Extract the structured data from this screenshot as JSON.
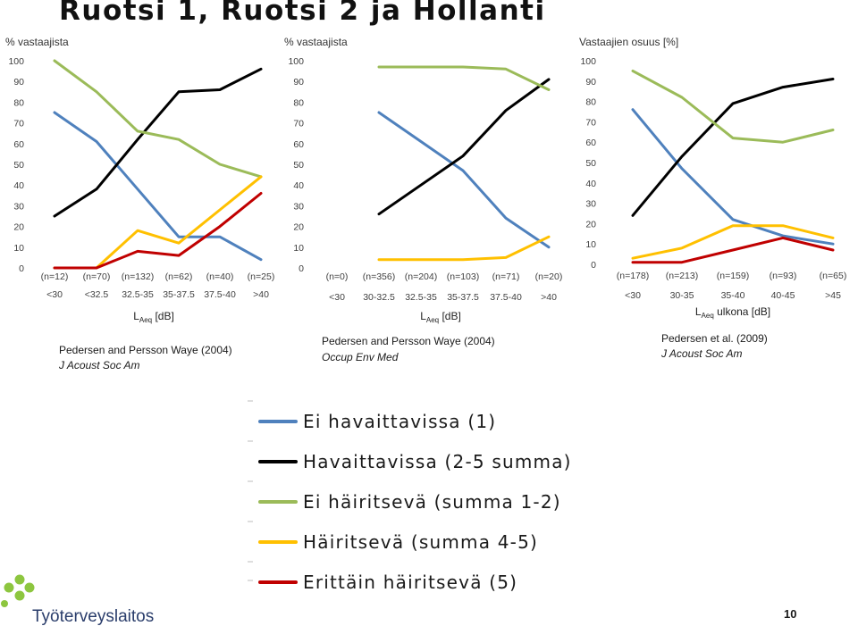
{
  "title": "Ruotsi 1, Ruotsi 2 ja Hollanti",
  "page_number": "10",
  "logo_text": "Työterveyslaitos",
  "legend": [
    {
      "label": "Ei havaittavissa (1)",
      "color": "#4f81bd"
    },
    {
      "label": "Havaittavissa (2-5 summa)",
      "color": "#000000"
    },
    {
      "label": "Ei häiritsevä (summa 1-2)",
      "color": "#9bbb59"
    },
    {
      "label": "Häiritsevä (summa 4-5)",
      "color": "#ffc000"
    },
    {
      "label": "Erittäin häiritsevä (5)",
      "color": "#c00000"
    }
  ],
  "chart_data": [
    {
      "type": "line",
      "ylabel": "% vastaajista",
      "ylim": [
        0,
        100
      ],
      "yticks": [
        "0",
        "10",
        "20",
        "30",
        "40",
        "50",
        "60",
        "70",
        "80",
        "90",
        "100"
      ],
      "x": [
        "<30",
        "<32.5",
        "32.5-35",
        "35-37.5",
        "37.5-40",
        ">40"
      ],
      "counts": [
        "(n=12)",
        "(n=70)",
        "(n=132)",
        "(n=62)",
        "(n=40)",
        "(n=25)"
      ],
      "xlabel_main": "L",
      "xlabel_sub": "Aeq",
      "xlabel_rest": " [dB]",
      "source_line1": "Pedersen and Persson Waye (2004)",
      "source_line2": "J Acoust Soc Am",
      "series": [
        {
          "name": "Ei havaittavissa (1)",
          "values": [
            75,
            61,
            38,
            15,
            15,
            4
          ]
        },
        {
          "name": "Havaittavissa (2-5 summa)",
          "values": [
            25,
            38,
            62,
            85,
            86,
            96
          ]
        },
        {
          "name": "Ei häiritsevä (summa 1-2)",
          "values": [
            100,
            85,
            66,
            62,
            50,
            44
          ]
        },
        {
          "name": "Häiritsevä (summa 4-5)",
          "values": [
            0,
            0,
            18,
            12,
            28,
            44
          ]
        },
        {
          "name": "Erittäin häiritsevä (5)",
          "values": [
            0,
            0,
            8,
            6,
            20,
            36
          ]
        }
      ]
    },
    {
      "type": "line",
      "ylabel": "% vastaajista",
      "ylim": [
        0,
        100
      ],
      "yticks": [
        "0",
        "10",
        "20",
        "30",
        "40",
        "50",
        "60",
        "70",
        "80",
        "90",
        "100"
      ],
      "x": [
        "<30",
        "30-32.5",
        "32.5-35",
        "35-37.5",
        "37.5-40",
        ">40"
      ],
      "counts": [
        "(n=0)",
        "(n=356)",
        "(n=204)",
        "(n=103)",
        "(n=71)",
        "(n=20)"
      ],
      "xlabel_main": "L",
      "xlabel_sub": "Aeq",
      "xlabel_rest": " [dB]",
      "source_line1": "Pedersen and Persson Waye (2004)",
      "source_line2": "Occup Env Med",
      "series": [
        {
          "name": "Ei havaittavissa (1)",
          "values": [
            null,
            75,
            61,
            47,
            24,
            10
          ]
        },
        {
          "name": "Havaittavissa (2-5 summa)",
          "values": [
            null,
            26,
            40,
            54,
            76,
            91
          ]
        },
        {
          "name": "Ei häiritsevä (summa 1-2)",
          "values": [
            null,
            97,
            97,
            97,
            96,
            86
          ]
        },
        {
          "name": "Häiritsevä (summa 4-5)",
          "values": [
            null,
            4,
            4,
            4,
            5,
            15
          ]
        },
        {
          "name": "Erittäin häiritsevä (5)",
          "values": [
            null,
            null,
            null,
            null,
            null,
            null
          ]
        }
      ]
    },
    {
      "type": "line",
      "ylabel": "Vastaajien osuus [%]",
      "ylim": [
        0,
        100
      ],
      "yticks": [
        "0",
        "10",
        "20",
        "30",
        "40",
        "50",
        "60",
        "70",
        "80",
        "90",
        "100"
      ],
      "x": [
        "<30",
        "30-35",
        "35-40",
        "40-45",
        ">45"
      ],
      "counts": [
        "(n=178)",
        "(n=213)",
        "(n=159)",
        "(n=93)",
        "(n=65)"
      ],
      "xlabel_main": "L",
      "xlabel_sub": "Aeq",
      "xlabel_rest": " ulkona [dB]",
      "source_line1": "Pedersen et al. (2009)",
      "source_line2": "J Acoust Soc Am",
      "series": [
        {
          "name": "Ei havaittavissa (1)",
          "values": [
            76,
            47,
            22,
            14,
            10
          ]
        },
        {
          "name": "Havaittavissa (2-5 summa)",
          "values": [
            24,
            53,
            79,
            87,
            91
          ]
        },
        {
          "name": "Ei häiritsevä (summa 1-2)",
          "values": [
            95,
            82,
            62,
            60,
            66
          ]
        },
        {
          "name": "Häiritsevä (summa 4-5)",
          "values": [
            3,
            8,
            19,
            19,
            13
          ]
        },
        {
          "name": "Erittäin häiritsevä (5)",
          "values": [
            1,
            1,
            7,
            13,
            7
          ]
        }
      ]
    }
  ]
}
